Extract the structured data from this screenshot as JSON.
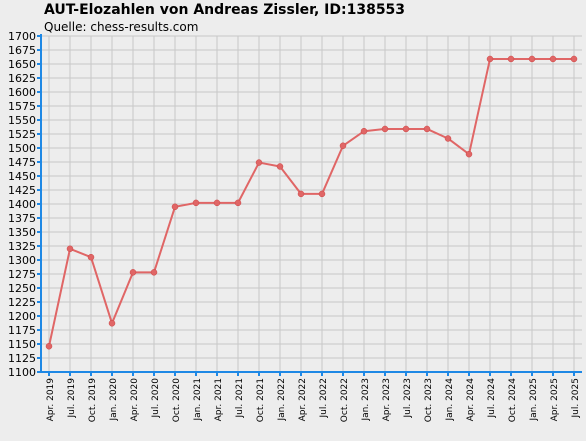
{
  "chart_data": {
    "type": "line",
    "title": "AUT-Elozahlen von Andreas Zissler, ID:138553",
    "subtitle": "Quelle: chess-results.com",
    "xlabel": "",
    "ylabel": "",
    "ylim": [
      1100,
      1700
    ],
    "y_ticks": [
      "1100",
      "1125",
      "1150",
      "1175",
      "1200",
      "1225",
      "1250",
      "1275",
      "1300",
      "1325",
      "1350",
      "1375",
      "1400",
      "1425",
      "1450",
      "1475",
      "1500",
      "1525",
      "1550",
      "1575",
      "1600",
      "1625",
      "1650",
      "1675",
      "1700"
    ],
    "categories": [
      "Apr. 2019",
      "Jul. 2019",
      "Oct. 2019",
      "Jan. 2020",
      "Apr. 2020",
      "Jul. 2020",
      "Oct. 2020",
      "Jan. 2021",
      "Apr. 2021",
      "Jul. 2021",
      "Oct. 2021",
      "Jan. 2022",
      "Apr. 2022",
      "Jul. 2022",
      "Oct. 2022",
      "Jan. 2023",
      "Apr. 2023",
      "Jul. 2023",
      "Oct. 2023",
      "Jan. 2024",
      "Apr. 2024",
      "Jul. 2024",
      "Oct. 2024",
      "Jan. 2025",
      "Apr. 2025",
      "Jul. 2025"
    ],
    "series": [
      {
        "values": [
          1146,
          1320,
          1305,
          1187,
          1278,
          1278,
          1395,
          1402,
          1402,
          1402,
          1474,
          1467,
          1418,
          1418,
          1504,
          1530,
          1534,
          1534,
          1534,
          1517,
          1489,
          1659,
          1659,
          1659,
          1659,
          1659
        ],
        "color": "#e06666"
      }
    ],
    "grid": true,
    "legend": "none",
    "colors": {
      "background": "#ededed",
      "grid": "#c8c8c8",
      "axis": "#1e88e5",
      "line": "#e06666"
    }
  }
}
